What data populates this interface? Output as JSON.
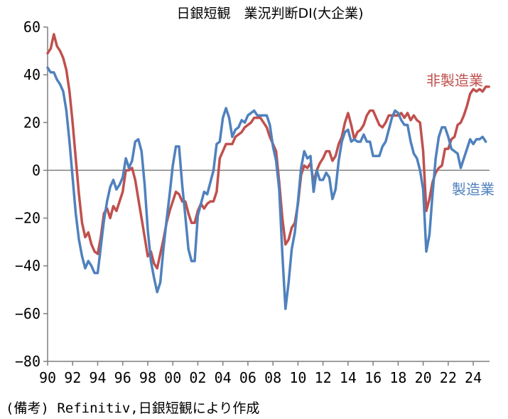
{
  "chart_data": {
    "type": "line",
    "title": "日銀短観　業況判断DI(大企業)",
    "note": "(備考) Refinitiv,日銀短観により作成",
    "ylim": [
      -80,
      60
    ],
    "yticks": [
      60,
      40,
      20,
      0,
      -20,
      -40,
      -60,
      -80
    ],
    "xlim": [
      1990,
      2025.3
    ],
    "xticks": [
      1990,
      1992,
      1994,
      1996,
      1998,
      2000,
      2002,
      2004,
      2006,
      2008,
      2010,
      2012,
      2014,
      2016,
      2018,
      2020,
      2022,
      2024
    ],
    "xtick_labels": [
      "90",
      "92",
      "94",
      "96",
      "98",
      "00",
      "02",
      "04",
      "06",
      "08",
      "10",
      "12",
      "14",
      "16",
      "18",
      "20",
      "22",
      "24"
    ],
    "grid": false,
    "zero_line": true,
    "series": [
      {
        "name": "非製造業",
        "color": "#c0504d",
        "points": [
          [
            1990.0,
            49
          ],
          [
            1990.25,
            51
          ],
          [
            1990.5,
            57
          ],
          [
            1990.75,
            52
          ],
          [
            1991.0,
            50
          ],
          [
            1991.25,
            47
          ],
          [
            1991.5,
            42
          ],
          [
            1991.75,
            33
          ],
          [
            1992.0,
            20
          ],
          [
            1992.25,
            5
          ],
          [
            1992.5,
            -10
          ],
          [
            1992.75,
            -22
          ],
          [
            1993.0,
            -28
          ],
          [
            1993.25,
            -26
          ],
          [
            1993.5,
            -31
          ],
          [
            1993.75,
            -34
          ],
          [
            1994.0,
            -35
          ],
          [
            1994.25,
            -28
          ],
          [
            1994.5,
            -18
          ],
          [
            1994.75,
            -16
          ],
          [
            1995.0,
            -20
          ],
          [
            1995.25,
            -15
          ],
          [
            1995.5,
            -17
          ],
          [
            1995.75,
            -13
          ],
          [
            1996.0,
            -9
          ],
          [
            1996.25,
            0
          ],
          [
            1996.5,
            0
          ],
          [
            1996.75,
            1
          ],
          [
            1997.0,
            -4
          ],
          [
            1997.25,
            -12
          ],
          [
            1997.5,
            -20
          ],
          [
            1997.75,
            -28
          ],
          [
            1998.0,
            -36
          ],
          [
            1998.25,
            -34
          ],
          [
            1998.5,
            -39
          ],
          [
            1998.75,
            -41
          ],
          [
            1999.0,
            -35
          ],
          [
            1999.25,
            -29
          ],
          [
            1999.5,
            -22
          ],
          [
            1999.75,
            -17
          ],
          [
            2000.0,
            -13
          ],
          [
            2000.25,
            -9
          ],
          [
            2000.5,
            -10
          ],
          [
            2000.75,
            -13
          ],
          [
            2001.0,
            -13
          ],
          [
            2001.25,
            -18
          ],
          [
            2001.5,
            -22
          ],
          [
            2001.75,
            -22
          ],
          [
            2002.0,
            -17
          ],
          [
            2002.25,
            -14
          ],
          [
            2002.5,
            -16
          ],
          [
            2002.75,
            -14
          ],
          [
            2003.0,
            -13
          ],
          [
            2003.25,
            -13
          ],
          [
            2003.5,
            -9
          ],
          [
            2003.75,
            5
          ],
          [
            2004.0,
            8
          ],
          [
            2004.25,
            11
          ],
          [
            2004.5,
            11
          ],
          [
            2004.75,
            11
          ],
          [
            2005.0,
            14
          ],
          [
            2005.25,
            15
          ],
          [
            2005.5,
            16
          ],
          [
            2005.75,
            18
          ],
          [
            2006.0,
            19
          ],
          [
            2006.25,
            20
          ],
          [
            2006.5,
            22
          ],
          [
            2006.75,
            22
          ],
          [
            2007.0,
            22
          ],
          [
            2007.25,
            20
          ],
          [
            2007.5,
            18
          ],
          [
            2007.75,
            14
          ],
          [
            2008.0,
            11
          ],
          [
            2008.25,
            8
          ],
          [
            2008.5,
            -5
          ],
          [
            2008.75,
            -20
          ],
          [
            2009.0,
            -31
          ],
          [
            2009.25,
            -29
          ],
          [
            2009.5,
            -24
          ],
          [
            2009.75,
            -22
          ],
          [
            2010.0,
            -14
          ],
          [
            2010.25,
            -2
          ],
          [
            2010.5,
            2
          ],
          [
            2010.75,
            1
          ],
          [
            2011.0,
            3
          ],
          [
            2011.25,
            -5
          ],
          [
            2011.5,
            0
          ],
          [
            2011.75,
            3
          ],
          [
            2012.0,
            5
          ],
          [
            2012.25,
            8
          ],
          [
            2012.5,
            8
          ],
          [
            2012.75,
            4
          ],
          [
            2013.0,
            6
          ],
          [
            2013.25,
            11
          ],
          [
            2013.5,
            14
          ],
          [
            2013.75,
            20
          ],
          [
            2014.0,
            24
          ],
          [
            2014.25,
            19
          ],
          [
            2014.5,
            13
          ],
          [
            2014.75,
            16
          ],
          [
            2015.0,
            17
          ],
          [
            2015.25,
            19
          ],
          [
            2015.5,
            23
          ],
          [
            2015.75,
            25
          ],
          [
            2016.0,
            25
          ],
          [
            2016.25,
            22
          ],
          [
            2016.5,
            19
          ],
          [
            2016.75,
            18
          ],
          [
            2017.0,
            20
          ],
          [
            2017.25,
            23
          ],
          [
            2017.5,
            23
          ],
          [
            2017.75,
            23
          ],
          [
            2018.0,
            23
          ],
          [
            2018.25,
            24
          ],
          [
            2018.5,
            22
          ],
          [
            2018.75,
            24
          ],
          [
            2019.0,
            21
          ],
          [
            2019.25,
            23
          ],
          [
            2019.5,
            21
          ],
          [
            2019.75,
            20
          ],
          [
            2020.0,
            8
          ],
          [
            2020.25,
            -17
          ],
          [
            2020.5,
            -12
          ],
          [
            2020.75,
            -5
          ],
          [
            2021.0,
            -1
          ],
          [
            2021.25,
            1
          ],
          [
            2021.5,
            2
          ],
          [
            2021.75,
            9
          ],
          [
            2022.0,
            9
          ],
          [
            2022.25,
            13
          ],
          [
            2022.5,
            14
          ],
          [
            2022.75,
            19
          ],
          [
            2023.0,
            20
          ],
          [
            2023.25,
            23
          ],
          [
            2023.5,
            27
          ],
          [
            2023.75,
            32
          ],
          [
            2024.0,
            34
          ],
          [
            2024.25,
            33
          ],
          [
            2024.5,
            34
          ],
          [
            2024.75,
            33
          ],
          [
            2025.0,
            35
          ],
          [
            2025.25,
            35
          ]
        ]
      },
      {
        "name": "製造業",
        "color": "#4f81bd",
        "points": [
          [
            1990.0,
            43
          ],
          [
            1990.25,
            41
          ],
          [
            1990.5,
            41
          ],
          [
            1990.75,
            38
          ],
          [
            1991.0,
            36
          ],
          [
            1991.25,
            33
          ],
          [
            1991.5,
            25
          ],
          [
            1991.75,
            12
          ],
          [
            1992.0,
            -3
          ],
          [
            1992.25,
            -18
          ],
          [
            1992.5,
            -29
          ],
          [
            1992.75,
            -36
          ],
          [
            1993.0,
            -41
          ],
          [
            1993.25,
            -38
          ],
          [
            1993.5,
            -40
          ],
          [
            1993.75,
            -43
          ],
          [
            1994.0,
            -43
          ],
          [
            1994.25,
            -32
          ],
          [
            1994.5,
            -21
          ],
          [
            1994.75,
            -13
          ],
          [
            1995.0,
            -7
          ],
          [
            1995.25,
            -4
          ],
          [
            1995.5,
            -8
          ],
          [
            1995.75,
            -6
          ],
          [
            1996.0,
            -3
          ],
          [
            1996.25,
            5
          ],
          [
            1996.5,
            1
          ],
          [
            1996.75,
            4
          ],
          [
            1997.0,
            12
          ],
          [
            1997.25,
            13
          ],
          [
            1997.5,
            8
          ],
          [
            1997.75,
            -6
          ],
          [
            1998.0,
            -25
          ],
          [
            1998.25,
            -38
          ],
          [
            1998.5,
            -45
          ],
          [
            1998.75,
            -51
          ],
          [
            1999.0,
            -47
          ],
          [
            1999.25,
            -33
          ],
          [
            1999.5,
            -21
          ],
          [
            1999.75,
            -10
          ],
          [
            2000.0,
            2
          ],
          [
            2000.25,
            10
          ],
          [
            2000.5,
            10
          ],
          [
            2000.75,
            -6
          ],
          [
            2001.0,
            -19
          ],
          [
            2001.25,
            -33
          ],
          [
            2001.5,
            -38
          ],
          [
            2001.75,
            -38
          ],
          [
            2002.0,
            -19
          ],
          [
            2002.25,
            -14
          ],
          [
            2002.5,
            -9
          ],
          [
            2002.75,
            -10
          ],
          [
            2003.0,
            -5
          ],
          [
            2003.25,
            0
          ],
          [
            2003.5,
            11
          ],
          [
            2003.75,
            12
          ],
          [
            2004.0,
            22
          ],
          [
            2004.25,
            26
          ],
          [
            2004.5,
            22
          ],
          [
            2004.75,
            14
          ],
          [
            2005.0,
            17
          ],
          [
            2005.25,
            18
          ],
          [
            2005.5,
            21
          ],
          [
            2005.75,
            20
          ],
          [
            2006.0,
            23
          ],
          [
            2006.25,
            24
          ],
          [
            2006.5,
            25
          ],
          [
            2006.75,
            23
          ],
          [
            2007.0,
            23
          ],
          [
            2007.25,
            23
          ],
          [
            2007.5,
            23
          ],
          [
            2007.75,
            19
          ],
          [
            2008.0,
            10
          ],
          [
            2008.25,
            4
          ],
          [
            2008.5,
            -8
          ],
          [
            2008.75,
            -35
          ],
          [
            2009.0,
            -58
          ],
          [
            2009.25,
            -47
          ],
          [
            2009.5,
            -33
          ],
          [
            2009.75,
            -26
          ],
          [
            2010.0,
            -13
          ],
          [
            2010.25,
            1
          ],
          [
            2010.5,
            8
          ],
          [
            2010.75,
            5
          ],
          [
            2011.0,
            6
          ],
          [
            2011.25,
            -9
          ],
          [
            2011.5,
            0
          ],
          [
            2011.75,
            -4
          ],
          [
            2012.0,
            -4
          ],
          [
            2012.25,
            -1
          ],
          [
            2012.5,
            -3
          ],
          [
            2012.75,
            -12
          ],
          [
            2013.0,
            -8
          ],
          [
            2013.25,
            4
          ],
          [
            2013.5,
            12
          ],
          [
            2013.75,
            16
          ],
          [
            2014.0,
            17
          ],
          [
            2014.25,
            12
          ],
          [
            2014.5,
            13
          ],
          [
            2014.75,
            12
          ],
          [
            2015.0,
            12
          ],
          [
            2015.25,
            15
          ],
          [
            2015.5,
            12
          ],
          [
            2015.75,
            12
          ],
          [
            2016.0,
            6
          ],
          [
            2016.25,
            6
          ],
          [
            2016.5,
            6
          ],
          [
            2016.75,
            10
          ],
          [
            2017.0,
            12
          ],
          [
            2017.25,
            17
          ],
          [
            2017.5,
            22
          ],
          [
            2017.75,
            25
          ],
          [
            2018.0,
            24
          ],
          [
            2018.25,
            21
          ],
          [
            2018.5,
            19
          ],
          [
            2018.75,
            19
          ],
          [
            2019.0,
            12
          ],
          [
            2019.25,
            7
          ],
          [
            2019.5,
            5
          ],
          [
            2019.75,
            0
          ],
          [
            2020.0,
            -8
          ],
          [
            2020.25,
            -34
          ],
          [
            2020.5,
            -27
          ],
          [
            2020.75,
            -10
          ],
          [
            2021.0,
            5
          ],
          [
            2021.25,
            14
          ],
          [
            2021.5,
            18
          ],
          [
            2021.75,
            18
          ],
          [
            2022.0,
            14
          ],
          [
            2022.25,
            9
          ],
          [
            2022.5,
            8
          ],
          [
            2022.75,
            7
          ],
          [
            2023.0,
            1
          ],
          [
            2023.25,
            5
          ],
          [
            2023.5,
            9
          ],
          [
            2023.75,
            13
          ],
          [
            2024.0,
            11
          ],
          [
            2024.25,
            13
          ],
          [
            2024.5,
            13
          ],
          [
            2024.75,
            14
          ],
          [
            2025.0,
            12
          ]
        ]
      }
    ]
  }
}
